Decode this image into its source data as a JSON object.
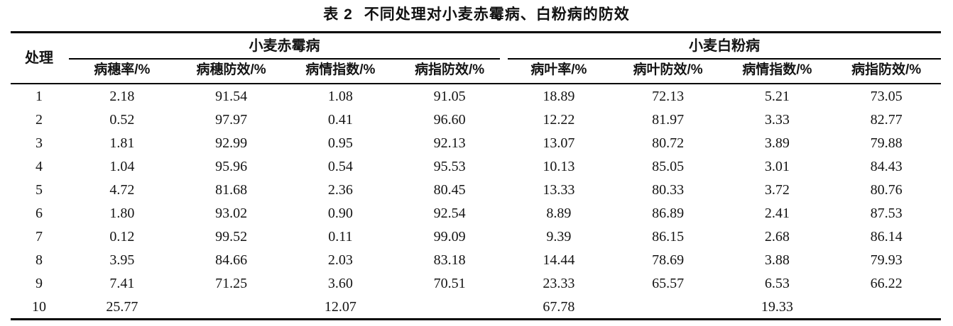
{
  "title": {
    "label": "表 2",
    "text": "不同处理对小麦赤霉病、白粉病的防效"
  },
  "table": {
    "corner_header": "处理",
    "groups": [
      {
        "label": "小麦赤霉病",
        "columns": [
          "病穗率/%",
          "病穗防效/%",
          "病情指数/%",
          "病指防效/%"
        ]
      },
      {
        "label": "小麦白粉病",
        "columns": [
          "病叶率/%",
          "病叶防效/%",
          "病情指数/%",
          "病指防效/%"
        ]
      }
    ],
    "rows": [
      {
        "treatment": "1",
        "values": [
          "2.18",
          "91.54",
          "1.08",
          "91.05",
          "18.89",
          "72.13",
          "5.21",
          "73.05"
        ]
      },
      {
        "treatment": "2",
        "values": [
          "0.52",
          "97.97",
          "0.41",
          "96.60",
          "12.22",
          "81.97",
          "3.33",
          "82.77"
        ]
      },
      {
        "treatment": "3",
        "values": [
          "1.81",
          "92.99",
          "0.95",
          "92.13",
          "13.07",
          "80.72",
          "3.89",
          "79.88"
        ]
      },
      {
        "treatment": "4",
        "values": [
          "1.04",
          "95.96",
          "0.54",
          "95.53",
          "10.13",
          "85.05",
          "3.01",
          "84.43"
        ]
      },
      {
        "treatment": "5",
        "values": [
          "4.72",
          "81.68",
          "2.36",
          "80.45",
          "13.33",
          "80.33",
          "3.72",
          "80.76"
        ]
      },
      {
        "treatment": "6",
        "values": [
          "1.80",
          "93.02",
          "0.90",
          "92.54",
          "8.89",
          "86.89",
          "2.41",
          "87.53"
        ]
      },
      {
        "treatment": "7",
        "values": [
          "0.12",
          "99.52",
          "0.11",
          "99.09",
          "9.39",
          "86.15",
          "2.68",
          "86.14"
        ]
      },
      {
        "treatment": "8",
        "values": [
          "3.95",
          "84.66",
          "2.03",
          "83.18",
          "14.44",
          "78.69",
          "3.88",
          "79.93"
        ]
      },
      {
        "treatment": "9",
        "values": [
          "7.41",
          "71.25",
          "3.60",
          "70.51",
          "23.33",
          "65.57",
          "6.53",
          "66.22"
        ]
      },
      {
        "treatment": "10",
        "values": [
          "25.77",
          "",
          "12.07",
          "",
          "67.78",
          "",
          "19.33",
          ""
        ]
      }
    ],
    "colors": {
      "text": "#141414",
      "rule": "#000000",
      "background": "#ffffff"
    }
  }
}
